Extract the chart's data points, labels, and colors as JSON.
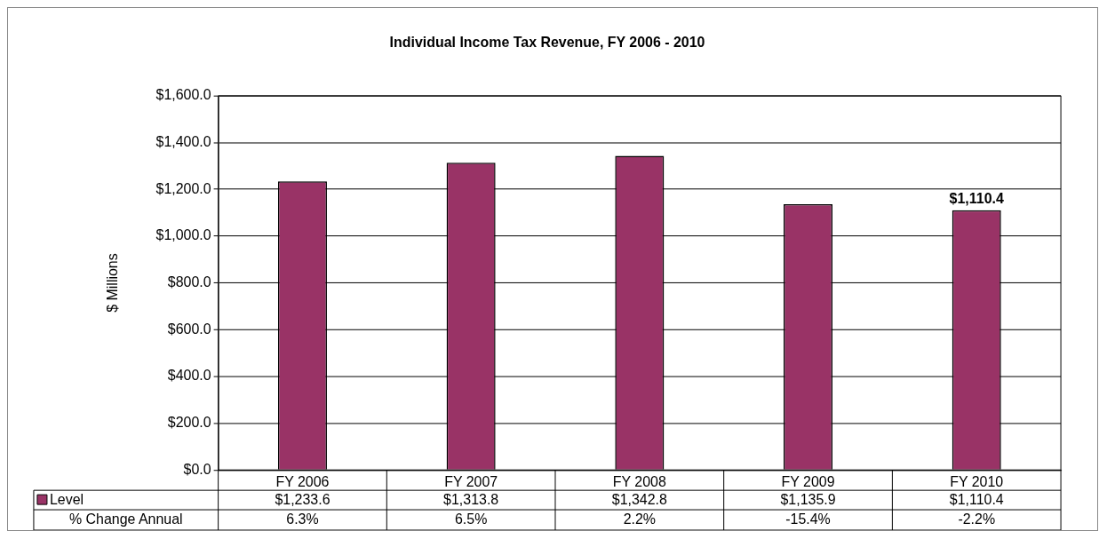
{
  "chart_data": {
    "type": "bar",
    "title": "Individual Income Tax Revenue, FY 2006 - 2010",
    "ylabel": "$ Millions",
    "categories": [
      "FY 2006",
      "FY 2007",
      "FY 2008",
      "FY 2009",
      "FY 2010"
    ],
    "series": [
      {
        "name": "Level",
        "color": "#993366",
        "values": [
          1233.6,
          1313.8,
          1342.8,
          1135.9,
          1110.4
        ],
        "value_labels": [
          "$1,233.6",
          "$1,313.8",
          "$1,342.8",
          "$1,135.9",
          "$1,110.4"
        ]
      }
    ],
    "annotations": [
      "% Change Annual",
      "6.3%",
      "6.5%",
      "2.2%",
      "-15.4%",
      "-2.2%",
      {
        "text": "$1,110.4",
        "x": "FY 2010",
        "y": 1110.4
      }
    ],
    "ylim": [
      0,
      1600
    ],
    "yticks": [
      {
        "value": 0,
        "label": "$0.0"
      },
      {
        "value": 200,
        "label": "$200.0"
      },
      {
        "value": 400,
        "label": "$400.0"
      },
      {
        "value": 600,
        "label": "$600.0"
      },
      {
        "value": 800,
        "label": "$800.0"
      },
      {
        "value": 1000,
        "label": "$1,000.0"
      },
      {
        "value": 1200,
        "label": "$1,200.0"
      },
      {
        "value": 1400,
        "label": "$1,400.0"
      },
      {
        "value": 1600,
        "label": "$1,600.0"
      }
    ],
    "grid": "y",
    "legend": "bottom"
  }
}
